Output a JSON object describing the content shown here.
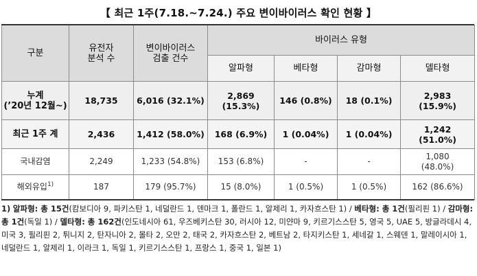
{
  "title": "【 최근 1주(7.18.~7.24.) 주요 변이바이러스 확인 현황 】",
  "header": {
    "col_category": "구분",
    "col_genome": [
      "유전자",
      "분석 수"
    ],
    "col_variant": [
      "변이바이러스",
      "검출 건수"
    ],
    "col_virus_type": "바이러스 유형",
    "types": [
      "알파형",
      "베타형",
      "감마형",
      "델타형"
    ]
  },
  "rows": {
    "cumulative": {
      "label": [
        "누계",
        "(’20년 12월~)"
      ],
      "genome": "18,735",
      "variant": "6,016 (32.1%)",
      "alpha": [
        "2,869",
        "(15.3%)"
      ],
      "beta": "146 (0.8%)",
      "gamma": "18 (0.1%)",
      "delta": [
        "2,983",
        "(15.9%)"
      ]
    },
    "recent_week": {
      "label": "최근 1주 계",
      "genome": "2,436",
      "variant": "1,412 (58.0%)",
      "alpha": "168 (6.9%)",
      "beta": "1 (0.04%)",
      "gamma": "1 (0.04%)",
      "delta": [
        "1,242",
        "(51.0%)"
      ]
    },
    "domestic": {
      "label": "국내감염",
      "genome": "2,249",
      "variant": "1,233 (54.8%)",
      "alpha": "153 (6.8%)",
      "beta": "-",
      "gamma": "-",
      "delta": [
        "1,080",
        "(48.0%)"
      ]
    },
    "abroad": {
      "label": "해외유입",
      "label_sup": "1)",
      "genome": "187",
      "variant": "179 (95.7%)",
      "alpha": "15 (8.0%)",
      "beta": "1 (0.5%)",
      "gamma": "1 (0.5%)",
      "delta": "162 (86.6%)"
    }
  },
  "footnote": {
    "marker": "1)",
    "alpha_label": "알파형: 총 15건",
    "alpha_detail": "(캄보디아 9, 파키스탄 1, 네덜란드 1, 덴마크  1, 폴란드 1, 알제리 1, 카자흐스탄 1) / ",
    "beta_label": "베타형: 총 1건",
    "beta_detail": "(필리핀 1) / ",
    "gamma_label": "감마형: 총 1건",
    "gamma_detail": "(독일 1) / ",
    "delta_label": "델타형: 총 162건",
    "delta_detail": "(인도네시아 61, 우즈베키스탄 30, 러시아 12, 미얀마 9, 키르기스스탄 5, 영국 5, UAE 5, 방글라데시 4, 미국 3, 필리핀 2, 튀니지 2, 탄자니아 2, 몰타 2, 오만 2, 태국 2, 카자흐스탄 2, 베트남 2, 타지키스탄 1, 세네갈 1, 스웨덴 1, 말레이시아 1, 네덜란드 1, 알제리 1, 이라크 1, 독일 1, 키르기스스탄 1, 프랑스 1, 중국 1, 일본 1)"
  }
}
